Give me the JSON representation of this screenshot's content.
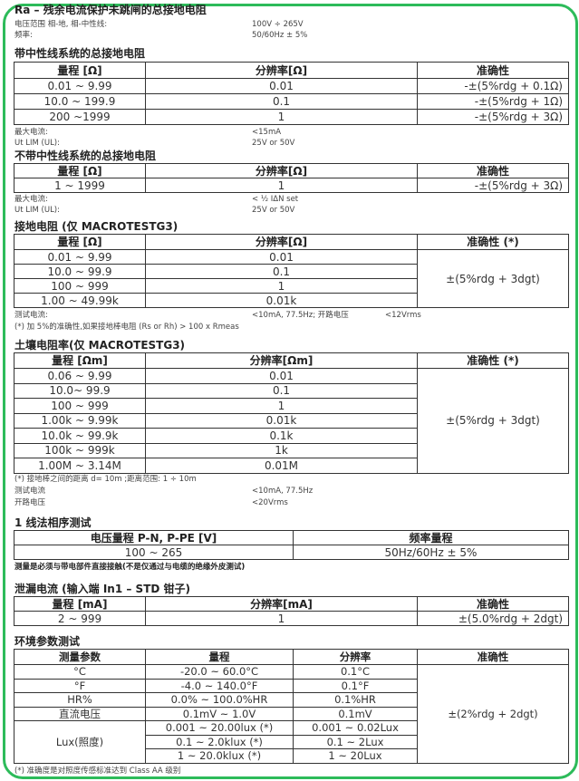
{
  "title": "Ra – 残余电流保护未跳闸的总接地电阻",
  "intro": [
    {
      "label": "电压范围 相-地, 相-中性线:",
      "value": "100V ÷ 265V"
    },
    {
      "label": "频率:",
      "value": "50/60Hz ± 5%"
    }
  ],
  "s1": {
    "heading": "带中性线系统的总接地电阻",
    "headers": [
      "量程 [Ω]",
      "分辨率[Ω]",
      "准确性"
    ],
    "rows": [
      [
        "0.01 ~ 9.99",
        "0.01",
        "-±(5%rdg + 0.1Ω)"
      ],
      [
        "10.0 ~ 199.9",
        "0.1",
        "-±(5%rdg + 1Ω)"
      ],
      [
        "200 ~1999",
        "1",
        "-±(5%rdg + 3Ω)"
      ]
    ],
    "notes": [
      {
        "label": "最大电流:",
        "value": "<15mA"
      },
      {
        "label": "Ut LIM (UL):",
        "value": "25V or 50V"
      }
    ]
  },
  "s2": {
    "heading": "不带中性线系统的总接地电阻",
    "headers": [
      "量程 [Ω]",
      "分辨率[Ω]",
      "准确性"
    ],
    "rows": [
      [
        "1 ~ 1999",
        "1",
        "-±(5%rdg + 3Ω)"
      ]
    ],
    "notes": [
      {
        "label": "最大电流:",
        "value": "< ½ IΔN set"
      },
      {
        "label": "Ut LIM (UL):",
        "value": "25V or 50V"
      }
    ]
  },
  "s3": {
    "heading": "接地电阻 (仅 MACROTESTG3)",
    "headers": [
      "量程 [Ω]",
      "分辨率[Ω]",
      "准确性 (*)"
    ],
    "rows": [
      [
        "0.01 ~ 9.99",
        "0.01"
      ],
      [
        "10.0 ~ 99.9",
        "0.1"
      ],
      [
        "100 ~ 999",
        "1"
      ],
      [
        "1.00 ~ 49.99k",
        "0.01k"
      ]
    ],
    "accuracy": "±(5%rdg + 3dgt)",
    "note1_label": "测试电流:",
    "note1_value": "<10mA, 77.5Hz; 开路电压",
    "note1_value2": "<12Vrms",
    "note2": "(*) 加 5%的准确性,如果接地棒电阻 (Rs or Rh) > 100 x Rmeas"
  },
  "s4": {
    "heading": "土壤电阻率(仅 MACROTESTG3)",
    "headers": [
      "量程 [Ωm]",
      "分辨率[Ωm]",
      "准确性 (*)"
    ],
    "rows": [
      [
        "0.06 ~ 9.99",
        "0.01"
      ],
      [
        "10.0~ 99.9",
        "0.1"
      ],
      [
        "100 ~ 999",
        "1"
      ],
      [
        "1.00k ~ 9.99k",
        "0.01k"
      ],
      [
        "10.0k ~ 99.9k",
        "0.1k"
      ],
      [
        "100k ~ 999k",
        "1k"
      ],
      [
        "1.00M ~ 3.14M",
        "0.01M"
      ]
    ],
    "accuracy": "±(5%rdg + 3dgt)",
    "note0": "(*) 接地棒之间的距离 d= 10m ;距离范围: 1 ÷ 10m",
    "notes": [
      {
        "label": "测试电流",
        "value": "<10mA, 77.5Hz"
      },
      {
        "label": "开路电压",
        "value": "<20Vrms"
      }
    ]
  },
  "s5": {
    "heading": "1 线法相序测试",
    "headers": [
      "电压量程 P-N, P-PE [V]",
      "频率量程"
    ],
    "row": [
      "100 ~ 265",
      "50Hz/60Hz ± 5%"
    ],
    "note": "测量是必须与带电部件直接接触(不是仅通过与电缆的绝缘外皮测试)"
  },
  "s6": {
    "heading": "泄漏电流 (输入端 In1 – STD 钳子)",
    "headers": [
      "量程 [mA]",
      "分辨率[mA]",
      "准确性"
    ],
    "row": [
      "2 ~ 999",
      "1",
      "±(5.0%rdg + 2dgt)"
    ]
  },
  "s7": {
    "heading": "环境参数测试",
    "headers": [
      "测量参数",
      "量程",
      "分辨率",
      "准确性"
    ],
    "rows": [
      [
        "°C",
        "-20.0 ~ 60.0°C",
        "0.1°C"
      ],
      [
        "°F",
        "-4.0 ~ 140.0°F",
        "0.1°F"
      ],
      [
        "HR%",
        "0.0% ~ 100.0%HR",
        "0.1%HR"
      ],
      [
        "直流电压",
        "0.1mV ~ 1.0V",
        "0.1mV"
      ]
    ],
    "lux_label": "Lux(照度)",
    "lux_rows": [
      [
        "0.001 ~ 20.00lux (*)",
        "0.001 ~ 0.02Lux"
      ],
      [
        "0.1 ~ 2.0klux (*)",
        "0.1 ~ 2Lux"
      ],
      [
        "1 ~ 20.0klux (*)",
        "1 ~ 20Lux"
      ]
    ],
    "accuracy": "±(2%rdg + 2dgt)",
    "note": "(*) 准确度是对照度传感标准达到 Class AA 级别"
  },
  "colors": {
    "frame": "#2dbb5a"
  }
}
